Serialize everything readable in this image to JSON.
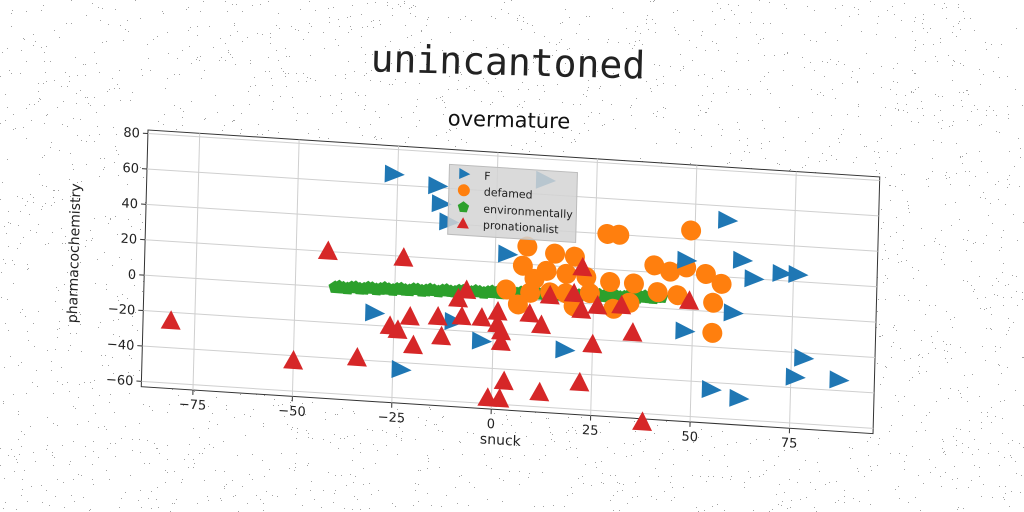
{
  "suptitle": "unincantoned",
  "chart_data": {
    "type": "scatter",
    "title": "overmature",
    "xlabel": "snuck",
    "ylabel": "pharmacochemistry",
    "xlim": [
      -88,
      96
    ],
    "ylim": [
      -63,
      82
    ],
    "xticks": [
      -75,
      -50,
      -25,
      0,
      25,
      50,
      75
    ],
    "yticks": [
      -60,
      -40,
      -20,
      0,
      20,
      40,
      60,
      80
    ],
    "grid": true,
    "legend_position": "top-center",
    "series": [
      {
        "name": "F",
        "marker": "triangle-right",
        "color": "#1f77b4",
        "points": [
          [
            -26,
            66
          ],
          [
            -15,
            61
          ],
          [
            -14,
            51
          ],
          [
            -12,
            41
          ],
          [
            12,
            68
          ],
          [
            3,
            25
          ],
          [
            48,
            28
          ],
          [
            58,
            52
          ],
          [
            62,
            30
          ],
          [
            65,
            20
          ],
          [
            72,
            24
          ],
          [
            76,
            24
          ],
          [
            78,
            -23
          ],
          [
            87,
            -34
          ],
          [
            76,
            -34
          ],
          [
            55,
            -44
          ],
          [
            62,
            -48
          ],
          [
            60,
            0
          ],
          [
            48,
            -12
          ],
          [
            18,
            -27
          ],
          [
            -3,
            -25
          ],
          [
            -30,
            -13
          ],
          [
            -23,
            -44
          ],
          [
            -10,
            -15
          ]
        ]
      },
      {
        "name": "defamed",
        "marker": "circle",
        "color": "#ff7f0e",
        "points": [
          [
            28,
            40
          ],
          [
            31,
            40
          ],
          [
            49,
            45
          ],
          [
            8,
            30
          ],
          [
            15,
            27
          ],
          [
            20,
            26
          ],
          [
            40,
            24
          ],
          [
            44,
            21
          ],
          [
            48,
            24
          ],
          [
            53,
            21
          ],
          [
            57,
            16
          ],
          [
            7,
            19
          ],
          [
            13,
            17
          ],
          [
            18,
            16
          ],
          [
            23,
            15
          ],
          [
            29,
            13
          ],
          [
            35,
            13
          ],
          [
            41,
            9
          ],
          [
            46,
            8
          ],
          [
            55,
            5
          ],
          [
            3,
            5
          ],
          [
            9,
            4
          ],
          [
            14,
            5
          ],
          [
            18,
            5
          ],
          [
            24,
            6
          ],
          [
            6,
            -3
          ],
          [
            20,
            -2
          ],
          [
            30,
            -2
          ],
          [
            55,
            -12
          ],
          [
            34,
            2
          ],
          [
            10,
            12
          ]
        ]
      },
      {
        "name": "environmentally",
        "marker": "pentagon",
        "color": "#2ca02c",
        "line": {
          "x_start": -40,
          "x_end": 42,
          "y_start": 0,
          "y_end": 6,
          "count": 80
        }
      },
      {
        "name": "pronationalist",
        "marker": "triangle-up",
        "color": "#d62728",
        "points": [
          [
            -81,
            -25
          ],
          [
            -50,
            -43
          ],
          [
            -34,
            -39
          ],
          [
            -42,
            20
          ],
          [
            -23,
            19
          ],
          [
            -24,
            -22
          ],
          [
            -20,
            -30
          ],
          [
            -21,
            -14
          ],
          [
            -13,
            -24
          ],
          [
            -14,
            -13
          ],
          [
            -9,
            -2
          ],
          [
            -7,
            3
          ],
          [
            -8,
            -12
          ],
          [
            -3,
            -12
          ],
          [
            1,
            -8
          ],
          [
            1,
            -15
          ],
          [
            2,
            -19
          ],
          [
            2,
            -25
          ],
          [
            -1,
            -57
          ],
          [
            2,
            -57
          ],
          [
            3,
            -47
          ],
          [
            9,
            -8
          ],
          [
            12,
            -14
          ],
          [
            14,
            3
          ],
          [
            20,
            5
          ],
          [
            22,
            -4
          ],
          [
            22,
            20
          ],
          [
            25,
            -23
          ],
          [
            22,
            -45
          ],
          [
            12,
            -52
          ],
          [
            26,
            -1
          ],
          [
            32,
            0
          ],
          [
            35,
            -15
          ],
          [
            38,
            -65
          ],
          [
            49,
            5
          ],
          [
            -26,
            -20
          ]
        ]
      }
    ]
  }
}
